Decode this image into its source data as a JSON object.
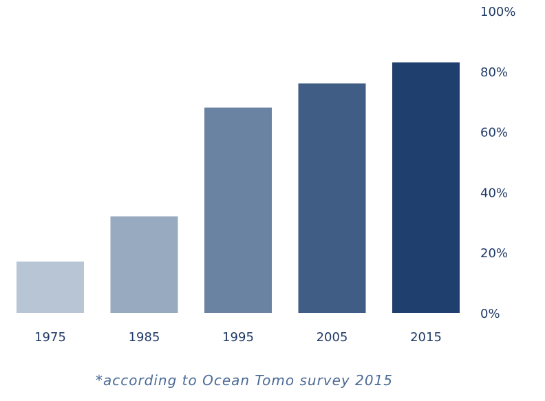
{
  "chart_data": {
    "type": "bar",
    "categories": [
      "1975",
      "1985",
      "1995",
      "2005",
      "2015"
    ],
    "values": [
      17,
      32,
      68,
      76,
      83
    ],
    "ylim": [
      0,
      100
    ],
    "yticks": [
      "0%",
      "20%",
      "40%",
      "60%",
      "80%",
      "100%"
    ],
    "y_axis_position": "right",
    "grid": false,
    "bar_colors": [
      "#b8c5d4",
      "#98aac0",
      "#6b83a3",
      "#405d86",
      "#1f3f6e"
    ],
    "title": "",
    "xlabel": "",
    "ylabel": ""
  },
  "footnote": "*according to Ocean Tomo survey 2015",
  "colors": {
    "text": "#1f3a66",
    "footnote": "#4a6a96"
  }
}
